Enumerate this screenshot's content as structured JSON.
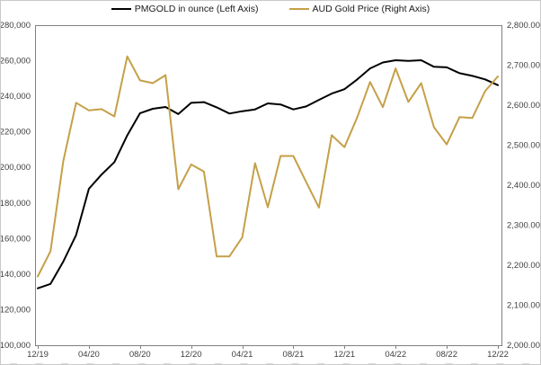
{
  "legend": {
    "pmgold_label": "PMGOLD in ounce (Left Axis)",
    "aud_label": "AUD Gold Price (Right Axis)"
  },
  "colors": {
    "pmgold_line": "#000000",
    "aud_line": "#C5A048",
    "axis_line": "#808080",
    "tick_label": "#404040",
    "bottom_dashes": "#d9d9d9"
  },
  "chart_data": {
    "type": "line",
    "title": "",
    "x": [
      "12/19",
      "01/20",
      "02/20",
      "03/20",
      "04/20",
      "05/20",
      "06/20",
      "07/20",
      "08/20",
      "09/20",
      "10/20",
      "11/20",
      "12/20",
      "01/21",
      "02/21",
      "03/21",
      "04/21",
      "05/21",
      "06/21",
      "07/21",
      "08/21",
      "09/21",
      "10/21",
      "11/21",
      "12/21",
      "01/22",
      "02/22",
      "03/22",
      "04/22",
      "05/22",
      "06/22",
      "07/22",
      "08/22",
      "09/22",
      "10/22",
      "11/22",
      "12/22"
    ],
    "x_tick_labels": [
      "12/19",
      "04/20",
      "08/20",
      "12/20",
      "04/21",
      "08/21",
      "12/21",
      "04/22",
      "08/22",
      "12/22"
    ],
    "series": [
      {
        "name": "PMGOLD in ounce (Left Axis)",
        "axis": "left",
        "color": "#000000",
        "values": [
          132000,
          134500,
          147000,
          162000,
          188000,
          196000,
          203000,
          218000,
          230500,
          233000,
          234000,
          230000,
          236300,
          236700,
          233800,
          230300,
          231600,
          232600,
          236000,
          235400,
          232600,
          234300,
          238000,
          241500,
          244000,
          249500,
          255700,
          259000,
          260300,
          259900,
          260300,
          256600,
          256300,
          253000,
          251500,
          249500,
          246300
        ]
      },
      {
        "name": "AUD Gold Price (Right Axis)",
        "axis": "right",
        "color": "#C5A048",
        "values": [
          2172,
          2235,
          2460,
          2606,
          2587,
          2590,
          2572,
          2722,
          2662,
          2655,
          2675,
          2390,
          2452,
          2434,
          2222,
          2222,
          2270,
          2455,
          2345,
          2473,
          2473,
          2408,
          2344,
          2525,
          2495,
          2570,
          2658,
          2595,
          2692,
          2608,
          2655,
          2545,
          2502,
          2570,
          2568,
          2635,
          2672
        ]
      }
    ],
    "left_axis": {
      "min": 100000,
      "max": 280000,
      "step": 20000,
      "tick_labels": [
        "100,000",
        "120,000",
        "140,000",
        "160,000",
        "180,000",
        "200,000",
        "220,000",
        "240,000",
        "260,000",
        "280,000"
      ]
    },
    "right_axis": {
      "min": 2000,
      "max": 2800,
      "step": 100,
      "tick_labels": [
        "2,000.00",
        "2,100.00",
        "2,200.00",
        "2,300.00",
        "2,400.00",
        "2,500.00",
        "2,600.00",
        "2,700.00",
        "2,800.00"
      ]
    },
    "grid": false,
    "legend_position": "top"
  }
}
